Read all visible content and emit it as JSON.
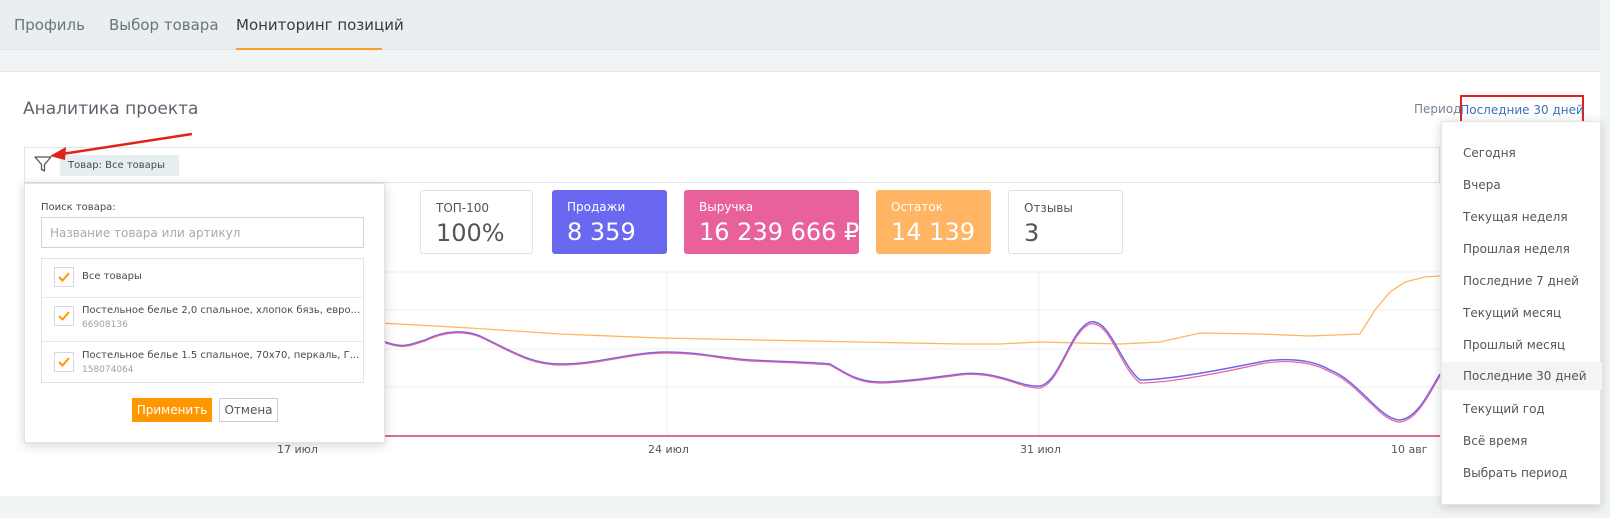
{
  "nav": {
    "tabs": [
      {
        "label": "Профиль"
      },
      {
        "label": "Выбор товара"
      },
      {
        "label": "Мониторинг позиций"
      }
    ],
    "active_tab": 2
  },
  "analytics": {
    "title": "Аналитика проекта",
    "period_label": "Период:",
    "period_value": "Последние 30 дней"
  },
  "filter": {
    "chip": "Товар: Все товары"
  },
  "stats": [
    {
      "label": "ТОП-100",
      "value": "100%",
      "color": ""
    },
    {
      "label": "Продажи",
      "value": "8 359",
      "color": "#6a67f0"
    },
    {
      "label": "Выручка",
      "value": "16 239 666 ₽",
      "color": "#e8619a"
    },
    {
      "label": "Остаток",
      "value": "14 139",
      "color": "#ffb563"
    },
    {
      "label": "Отзывы",
      "value": "3",
      "color": ""
    }
  ],
  "popover": {
    "search_label": "Поиск товара:",
    "search_placeholder": "Название товара или артикул",
    "items": [
      {
        "title": "Все товары",
        "sub": "",
        "checked": true
      },
      {
        "title": "Постельное белье 2,0 спальное, хлопок бязь, евро...",
        "sub": "66908136",
        "checked": true
      },
      {
        "title": "Постельное белье 1.5 спальное, 70х70, перкаль, Г...",
        "sub": "158074064",
        "checked": true
      }
    ],
    "apply": "Применить",
    "cancel": "Отмена"
  },
  "period_dropdown": {
    "options": [
      "Сегодня",
      "Вчера",
      "Текущая неделя",
      "Прошлая неделя",
      "Последние 7 дней",
      "Текущий месяц",
      "Прошлый месяц",
      "Последние 30 дней",
      "Текущий год",
      "Всё время",
      "Выбрать период"
    ],
    "selected": 7
  },
  "colors": {
    "accent": "#ff9800",
    "sales": "#6a67f0",
    "revenue": "#e8619a",
    "stock": "#ffb563"
  },
  "chart_data": {
    "type": "line",
    "x_ticks": [
      "17 июл",
      "24 июл",
      "31 июл",
      "10 авг"
    ],
    "series": []
  }
}
